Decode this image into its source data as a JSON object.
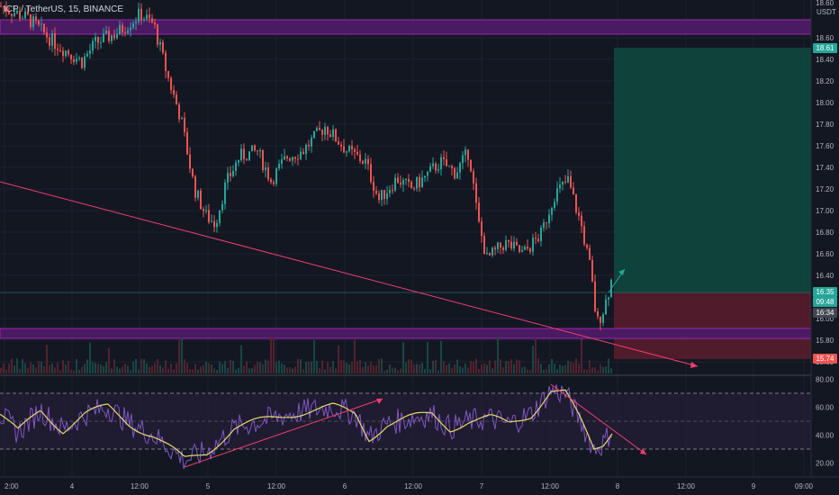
{
  "header": {
    "symbol": "ICP / TetherUS",
    "interval": "15",
    "exchange": "BINANCE",
    "currency": "USDT"
  },
  "colors": {
    "background": "#131722",
    "bull": "#26a69a",
    "bear": "#ef5350",
    "zone": "#7b1fa2",
    "trendline": "#f23d6d",
    "rsi": "#7e57c2",
    "rsi_ma": "#e8d96b",
    "target_zone": "#0e4a40",
    "stop_zone": "#5c1d2e"
  },
  "price_axis": {
    "ticks": [
      "18.60",
      "18.40",
      "18.20",
      "18.00",
      "17.80",
      "17.60",
      "17.40",
      "17.20",
      "17.00",
      "16.80",
      "16.60",
      "16.40",
      "16.00",
      "15.80",
      "15.60"
    ],
    "top_label": "18.60"
  },
  "rsi_axis": {
    "ticks": [
      "80.00",
      "60.00",
      "40.00",
      "20.00"
    ]
  },
  "time_axis": {
    "labels": [
      "2:00",
      "4",
      "12:00",
      "5",
      "12:00",
      "6",
      "12:00",
      "7",
      "12:00",
      "8",
      "12:00",
      "9",
      "09:00"
    ]
  },
  "price_tags": {
    "target": "18.61",
    "current": "16.35",
    "countdown": "09:48",
    "last": "16:34",
    "stop": "15.74"
  },
  "chart_data": {
    "type": "candlestick",
    "instrument": "ICP / TetherUS",
    "interval": "15",
    "ylim": [
      15.6,
      18.75
    ],
    "key_levels": {
      "resistance_zone": [
        18.75,
        18.88
      ],
      "support_zone": [
        15.93,
        16.0
      ],
      "long_position": {
        "entry": 16.35,
        "target": 18.61,
        "stop": 15.74
      }
    },
    "approx_path": [
      {
        "t": "4",
        "price": 18.7
      },
      {
        "t": "12:00",
        "price": 18.85
      },
      {
        "t": "5",
        "price": 16.85
      },
      {
        "t": "12:00",
        "price": 17.6
      },
      {
        "t": "6",
        "price": 17.75
      },
      {
        "t": "12:00",
        "price": 17.2
      },
      {
        "t": "7",
        "price": 17.4
      },
      {
        "t": "7",
        "price": 16.5
      },
      {
        "t": "12:00",
        "price": 17.3
      },
      {
        "t": "8",
        "price": 15.9
      },
      {
        "t": "8",
        "price": 16.35
      }
    ],
    "rsi": {
      "ylim": [
        10,
        85
      ],
      "bands": [
        30,
        70
      ],
      "current": 35
    }
  }
}
